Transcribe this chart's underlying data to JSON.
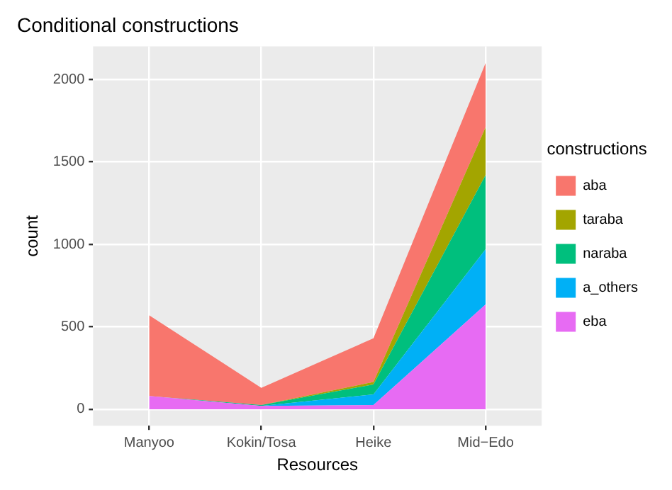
{
  "chart_data": {
    "type": "area",
    "title": "Conditional constructions",
    "xlabel": "Resources",
    "ylabel": "count",
    "legend_title": "constructions",
    "categories": [
      "Manyoo",
      "Kokin/Tosa",
      "Heike",
      "Mid−Edo"
    ],
    "stacked": true,
    "ylim": [
      -100,
      2200
    ],
    "yticks": [
      0,
      500,
      1000,
      1500,
      2000
    ],
    "grid": true,
    "legend": "right",
    "series": [
      {
        "name": "eba",
        "color": "#e76bf3",
        "values": [
          80,
          20,
          25,
          635
        ]
      },
      {
        "name": "a_others",
        "color": "#00b0f6",
        "values": [
          0,
          0,
          65,
          335
        ]
      },
      {
        "name": "naraba",
        "color": "#00bf7d",
        "values": [
          0,
          5,
          60,
          450
        ]
      },
      {
        "name": "taraba",
        "color": "#a3a500",
        "values": [
          0,
          0,
          15,
          290
        ]
      },
      {
        "name": "aba",
        "color": "#f8766d",
        "values": [
          490,
          105,
          265,
          390
        ]
      }
    ]
  }
}
